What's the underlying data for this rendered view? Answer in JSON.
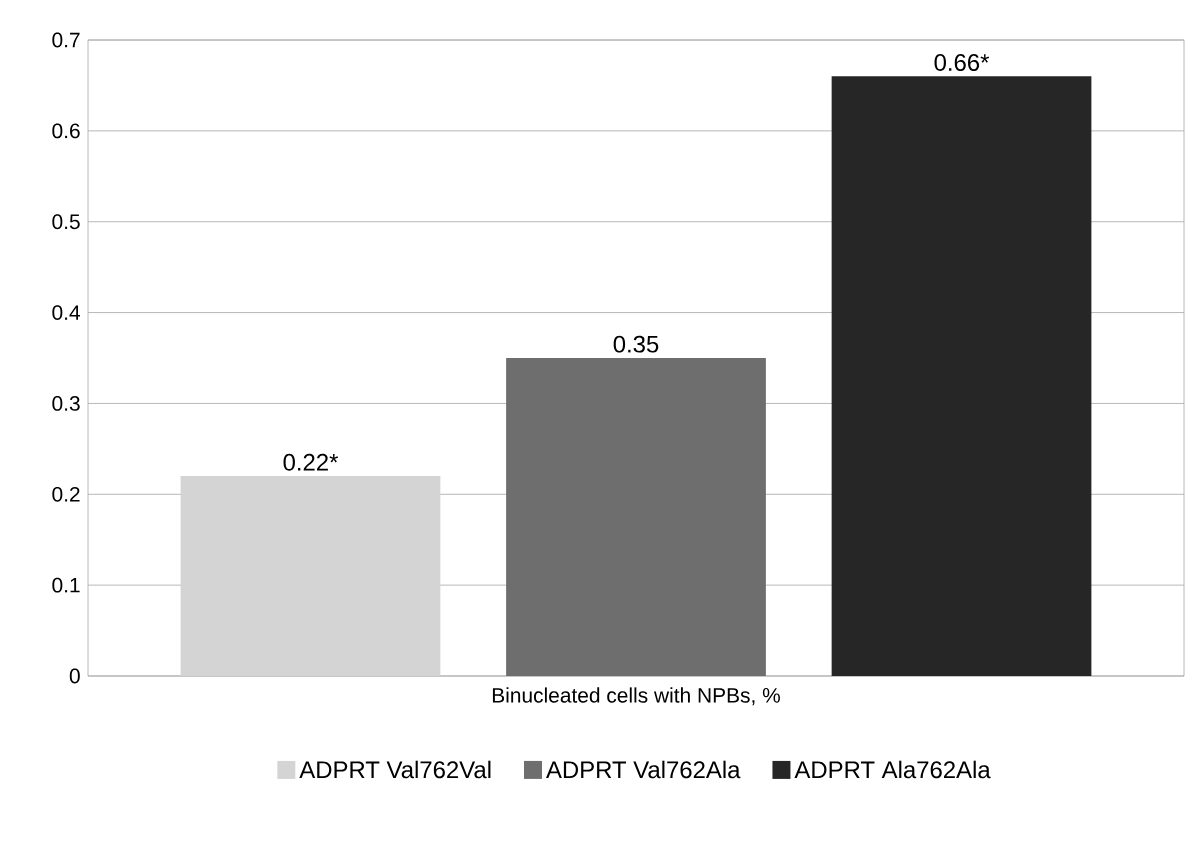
{
  "chart_data": {
    "type": "bar",
    "categories": [
      "Binucleated cells with NPBs, %"
    ],
    "series": [
      {
        "name": "ADPRT Val762Val",
        "color": "#d4d4d4",
        "values": [
          0.22
        ],
        "value_labels": [
          "0.22*"
        ]
      },
      {
        "name": "ADPRT Val762Ala",
        "color": "#6e6e6e",
        "values": [
          0.35
        ],
        "value_labels": [
          "0.35"
        ]
      },
      {
        "name": "ADPRT Ala762Ala",
        "color": "#262626",
        "values": [
          0.66
        ],
        "value_labels": [
          "0.66*"
        ]
      }
    ],
    "ylim": [
      0,
      0.7
    ],
    "yticks": [
      0,
      0.1,
      0.2,
      0.3,
      0.4,
      0.5,
      0.6,
      0.7
    ],
    "grid": "y",
    "legend": "bottom"
  }
}
